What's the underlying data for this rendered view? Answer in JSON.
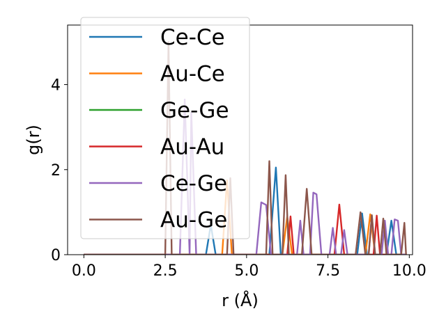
{
  "chart_data": {
    "type": "line",
    "title": "",
    "xlabel": "r (Å)",
    "ylabel": "g(r)",
    "xlim": [
      -0.5,
      10.1
    ],
    "ylim": [
      0,
      5.4
    ],
    "xticks": [
      0.0,
      2.5,
      5.0,
      7.5,
      10.0
    ],
    "xtick_labels": [
      "0.0",
      "2.5",
      "5.0",
      "7.5",
      "10.0"
    ],
    "yticks": [
      0,
      2,
      4
    ],
    "ytick_labels": [
      "0",
      "2",
      "4"
    ],
    "legend_position": "upper-left",
    "series": [
      {
        "name": "Ce-Ce",
        "color": "#1f77b4",
        "points": [
          [
            0,
            0
          ],
          [
            3.75,
            0
          ],
          [
            3.9,
            0.7
          ],
          [
            4.05,
            0
          ],
          [
            5.7,
            0
          ],
          [
            5.9,
            2.05
          ],
          [
            6.05,
            0
          ],
          [
            8.4,
            0
          ],
          [
            8.55,
            0.97
          ],
          [
            8.7,
            0
          ],
          [
            9.3,
            0
          ],
          [
            9.45,
            0.8
          ],
          [
            9.6,
            0
          ],
          [
            9.9,
            0
          ]
        ]
      },
      {
        "name": "Au-Ce",
        "color": "#ff7f0e",
        "points": [
          [
            0,
            0
          ],
          [
            4.25,
            0
          ],
          [
            4.4,
            1.75
          ],
          [
            4.55,
            0
          ],
          [
            6.1,
            0
          ],
          [
            6.25,
            0.9
          ],
          [
            6.4,
            0
          ],
          [
            8.65,
            0
          ],
          [
            8.8,
            0.95
          ],
          [
            8.95,
            0
          ],
          [
            9.9,
            0
          ]
        ]
      },
      {
        "name": "Ge-Ge",
        "color": "#2ca02c",
        "points": [
          [
            0,
            0
          ],
          [
            9.9,
            0
          ]
        ]
      },
      {
        "name": "Au-Au",
        "color": "#d62728",
        "points": [
          [
            0,
            0
          ],
          [
            6.25,
            0
          ],
          [
            6.35,
            0.9
          ],
          [
            6.45,
            0
          ],
          [
            7.7,
            0
          ],
          [
            7.85,
            1.18
          ],
          [
            8.0,
            0
          ],
          [
            8.9,
            0
          ],
          [
            9.0,
            0.92
          ],
          [
            9.1,
            0
          ],
          [
            9.9,
            0
          ]
        ]
      },
      {
        "name": "Ce-Ge",
        "color": "#9467bd",
        "points": [
          [
            0,
            0
          ],
          [
            2.95,
            0
          ],
          [
            3.1,
            3.65
          ],
          [
            3.25,
            0
          ],
          [
            3.3,
            3.35
          ],
          [
            3.45,
            0
          ],
          [
            5.3,
            0
          ],
          [
            5.45,
            1.23
          ],
          [
            5.6,
            1.17
          ],
          [
            5.75,
            0
          ],
          [
            6.55,
            0
          ],
          [
            6.65,
            0.8
          ],
          [
            6.75,
            0
          ],
          [
            6.95,
            0
          ],
          [
            7.05,
            1.46
          ],
          [
            7.15,
            1.42
          ],
          [
            7.3,
            0
          ],
          [
            7.55,
            0
          ],
          [
            7.65,
            0.63
          ],
          [
            7.75,
            0
          ],
          [
            7.9,
            0
          ],
          [
            8.0,
            0.58
          ],
          [
            8.1,
            0
          ],
          [
            8.75,
            0
          ],
          [
            8.85,
            0.9
          ],
          [
            8.95,
            0
          ],
          [
            9.15,
            0
          ],
          [
            9.25,
            0.8
          ],
          [
            9.35,
            0
          ],
          [
            9.45,
            0
          ],
          [
            9.55,
            0.83
          ],
          [
            9.65,
            0.8
          ],
          [
            9.75,
            0
          ],
          [
            9.9,
            0
          ]
        ]
      },
      {
        "name": "Au-Ge",
        "color": "#8c564b",
        "points": [
          [
            0,
            0
          ],
          [
            2.5,
            0
          ],
          [
            2.6,
            5.0
          ],
          [
            2.7,
            0
          ],
          [
            4.4,
            0
          ],
          [
            4.5,
            1.8
          ],
          [
            4.6,
            0
          ],
          [
            5.6,
            0
          ],
          [
            5.7,
            2.2
          ],
          [
            5.8,
            0
          ],
          [
            6.1,
            0
          ],
          [
            6.2,
            1.87
          ],
          [
            6.3,
            0
          ],
          [
            6.7,
            0
          ],
          [
            6.85,
            1.55
          ],
          [
            7.0,
            0
          ],
          [
            8.35,
            0
          ],
          [
            8.5,
            1.0
          ],
          [
            8.65,
            0
          ],
          [
            8.75,
            0
          ],
          [
            8.85,
            0.93
          ],
          [
            8.95,
            0
          ],
          [
            9.1,
            0
          ],
          [
            9.2,
            0.85
          ],
          [
            9.3,
            0
          ],
          [
            9.75,
            0
          ],
          [
            9.85,
            0.75
          ],
          [
            9.9,
            0
          ]
        ]
      }
    ]
  }
}
